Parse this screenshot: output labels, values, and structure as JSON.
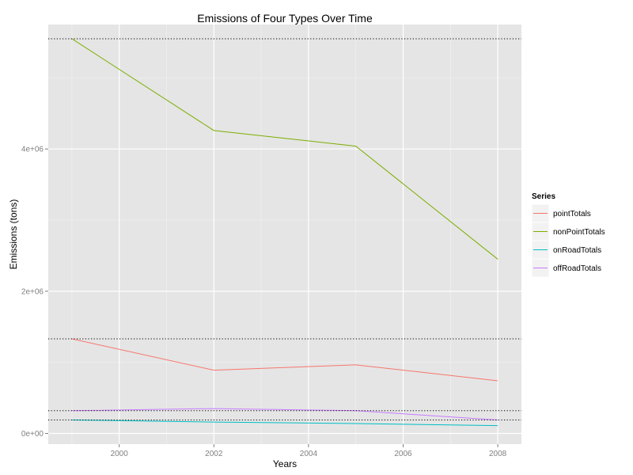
{
  "chart_data": {
    "type": "line",
    "title": "Emissions of Four Types Over Time",
    "xlabel": "Years",
    "ylabel": "Emissions (tons)",
    "x": [
      1999,
      2002,
      2005,
      2008
    ],
    "xlim": [
      1998.5,
      2008.5
    ],
    "ylim": [
      -150000,
      5750000
    ],
    "x_ticks": [
      {
        "value": 2000,
        "label": "2000"
      },
      {
        "value": 2002,
        "label": "2002"
      },
      {
        "value": 2004,
        "label": "2004"
      },
      {
        "value": 2006,
        "label": "2006"
      },
      {
        "value": 2008,
        "label": "2008"
      }
    ],
    "y_ticks": [
      {
        "value": 0,
        "label": "0e+00"
      },
      {
        "value": 2000000,
        "label": "2e+06"
      },
      {
        "value": 4000000,
        "label": "4e+06"
      }
    ],
    "grid": true,
    "legend": {
      "title": "Series",
      "position": "right"
    },
    "series": [
      {
        "name": "pointTotals",
        "color": "#F8766D",
        "values": [
          1330000,
          890000,
          965000,
          740000
        ]
      },
      {
        "name": "nonPointTotals",
        "color": "#7CAE00",
        "values": [
          5550000,
          4260000,
          4040000,
          2450000
        ]
      },
      {
        "name": "onRoadTotals",
        "color": "#00BFC4",
        "values": [
          190000,
          160000,
          140000,
          110000
        ]
      },
      {
        "name": "offRoadTotals",
        "color": "#C77CFF",
        "values": [
          320000,
          350000,
          320000,
          190000
        ]
      }
    ],
    "reference_lines": [
      5550000,
      1330000,
      320000,
      190000
    ]
  }
}
